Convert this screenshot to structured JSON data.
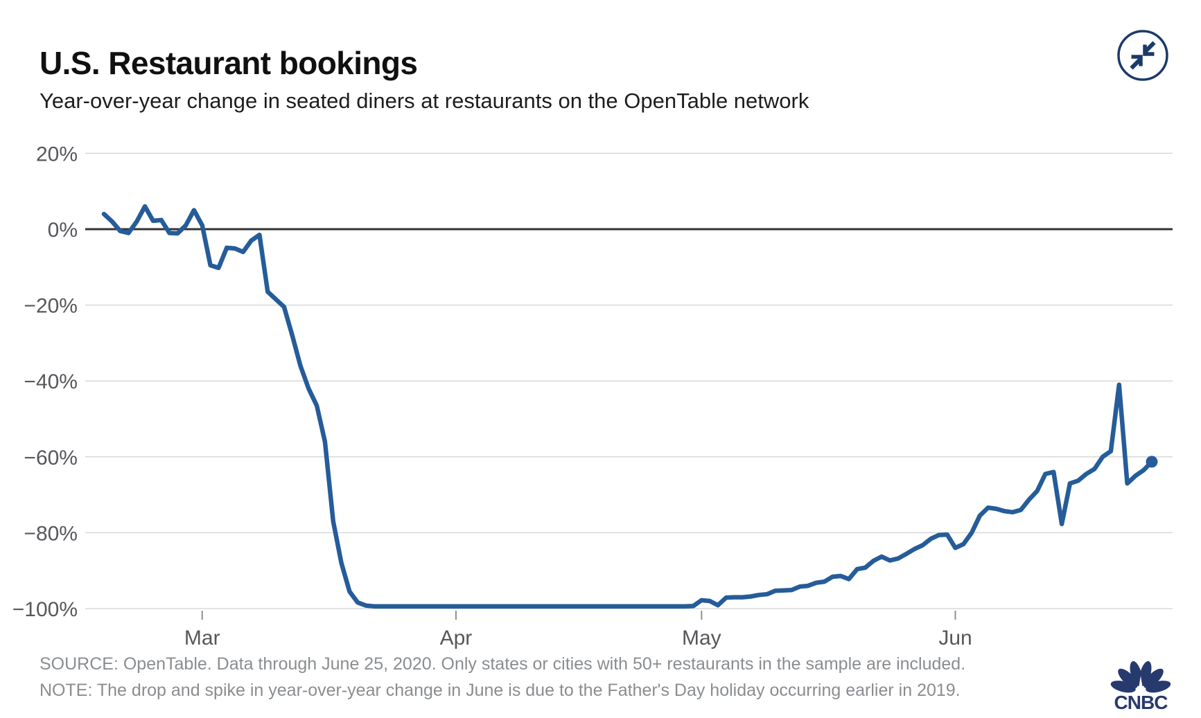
{
  "header": {
    "title": "U.S. Restaurant bookings",
    "subtitle": "Year-over-year change in seated diners at restaurants on the OpenTable network",
    "collapse_icon": "collapse-arrows"
  },
  "footer": {
    "source": "SOURCE: OpenTable. Data through June 25, 2020. Only states or cities with 50+ restaurants in the sample are included.",
    "note": "NOTE: The drop and spike in year-over-year change in June is due to the Father's Day holiday occurring earlier in 2019.",
    "logo_text": "CNBC"
  },
  "colors": {
    "line": "#255c99",
    "zero_axis": "#333333",
    "grid": "#d8d8d8",
    "tick": "#8f8f8f",
    "axis_text": "#55575b",
    "footer_text": "#8a8d90",
    "icon_navy": "#1c3a67",
    "logo_navy": "#273a6e"
  },
  "chart_data": {
    "type": "line",
    "title": "U.S. Restaurant bookings",
    "subtitle": "Year-over-year change in seated diners at restaurants on the OpenTable network",
    "ylim": [
      -104,
      24
    ],
    "grid": true,
    "legend": false,
    "last_point_marker": true,
    "yticks": [
      {
        "label": "20%",
        "value": 20
      },
      {
        "label": "0%",
        "value": 0
      },
      {
        "label": "−20%",
        "value": -20
      },
      {
        "label": "−40%",
        "value": -40
      },
      {
        "label": "−60%",
        "value": -60
      },
      {
        "label": "−80%",
        "value": -80
      },
      {
        "label": "−100%",
        "value": -100
      }
    ],
    "xticks": [
      {
        "label": "Mar",
        "index": 12
      },
      {
        "label": "Apr",
        "index": 43
      },
      {
        "label": "May",
        "index": 73
      },
      {
        "label": "Jun",
        "index": 104
      }
    ],
    "x": [
      "Feb 18",
      "Feb 19",
      "Feb 20",
      "Feb 21",
      "Feb 22",
      "Feb 23",
      "Feb 24",
      "Feb 25",
      "Feb 26",
      "Feb 27",
      "Feb 28",
      "Feb 29",
      "Mar 1",
      "Mar 2",
      "Mar 3",
      "Mar 4",
      "Mar 5",
      "Mar 6",
      "Mar 7",
      "Mar 8",
      "Mar 9",
      "Mar 10",
      "Mar 11",
      "Mar 12",
      "Mar 13",
      "Mar 14",
      "Mar 15",
      "Mar 16",
      "Mar 17",
      "Mar 18",
      "Mar 19",
      "Mar 20",
      "Mar 21",
      "Mar 22",
      "Mar 23",
      "Mar 24",
      "Mar 25",
      "Mar 26",
      "Mar 27",
      "Mar 28",
      "Mar 29",
      "Mar 30",
      "Mar 31",
      "Apr 1",
      "Apr 2",
      "Apr 3",
      "Apr 4",
      "Apr 5",
      "Apr 6",
      "Apr 7",
      "Apr 8",
      "Apr 9",
      "Apr 10",
      "Apr 11",
      "Apr 12",
      "Apr 13",
      "Apr 14",
      "Apr 15",
      "Apr 16",
      "Apr 17",
      "Apr 18",
      "Apr 19",
      "Apr 20",
      "Apr 21",
      "Apr 22",
      "Apr 23",
      "Apr 24",
      "Apr 25",
      "Apr 26",
      "Apr 27",
      "Apr 28",
      "Apr 29",
      "Apr 30",
      "May 1",
      "May 2",
      "May 3",
      "May 4",
      "May 5",
      "May 6",
      "May 7",
      "May 8",
      "May 9",
      "May 10",
      "May 11",
      "May 12",
      "May 13",
      "May 14",
      "May 15",
      "May 16",
      "May 17",
      "May 18",
      "May 19",
      "May 20",
      "May 21",
      "May 22",
      "May 23",
      "May 24",
      "May 25",
      "May 26",
      "May 27",
      "May 28",
      "May 29",
      "May 30",
      "May 31",
      "Jun 1",
      "Jun 2",
      "Jun 3",
      "Jun 4",
      "Jun 5",
      "Jun 6",
      "Jun 7",
      "Jun 8",
      "Jun 9",
      "Jun 10",
      "Jun 11",
      "Jun 12",
      "Jun 13",
      "Jun 14",
      "Jun 15",
      "Jun 16",
      "Jun 17",
      "Jun 18",
      "Jun 19",
      "Jun 20",
      "Jun 21",
      "Jun 22",
      "Jun 23",
      "Jun 24",
      "Jun 25"
    ],
    "values": [
      4,
      2,
      -0.5,
      -1,
      2,
      6,
      2.2,
      2.4,
      -1,
      -1.1,
      1,
      5,
      1,
      -9.5,
      -10.2,
      -4.9,
      -5.1,
      -6,
      -3,
      -1.5,
      -16.5,
      -18.5,
      -20.5,
      -28,
      -36,
      -42,
      -46.5,
      -56,
      -77,
      -88,
      -95.5,
      -98.4,
      -99.2,
      -99.4,
      -99.4,
      -99.4,
      -99.4,
      -99.4,
      -99.4,
      -99.4,
      -99.4,
      -99.4,
      -99.4,
      -99.4,
      -99.4,
      -99.4,
      -99.4,
      -99.4,
      -99.4,
      -99.4,
      -99.4,
      -99.4,
      -99.4,
      -99.4,
      -99.4,
      -99.4,
      -99.4,
      -99.4,
      -99.4,
      -99.4,
      -99.4,
      -99.4,
      -99.4,
      -99.4,
      -99.4,
      -99.4,
      -99.4,
      -99.4,
      -99.4,
      -99.4,
      -99.4,
      -99.4,
      -99.3,
      -97.8,
      -98,
      -99.1,
      -97.1,
      -97,
      -97,
      -96.8,
      -96.4,
      -96.2,
      -95.3,
      -95.2,
      -95.1,
      -94.2,
      -94,
      -93.2,
      -92.9,
      -91.6,
      -91.4,
      -92.2,
      -89.6,
      -89.2,
      -87.4,
      -86.3,
      -87.3,
      -86.8,
      -85.6,
      -84.3,
      -83.3,
      -81.6,
      -80.6,
      -80.5,
      -84,
      -83,
      -80,
      -75.5,
      -73.4,
      -73.7,
      -74.3,
      -74.6,
      -74,
      -71.3,
      -69,
      -64.5,
      -64,
      -77.7,
      -67,
      -66.3,
      -64.5,
      -63.2,
      -60,
      -58.5,
      -41,
      -67,
      -65,
      -63.5,
      -61.3
    ]
  }
}
